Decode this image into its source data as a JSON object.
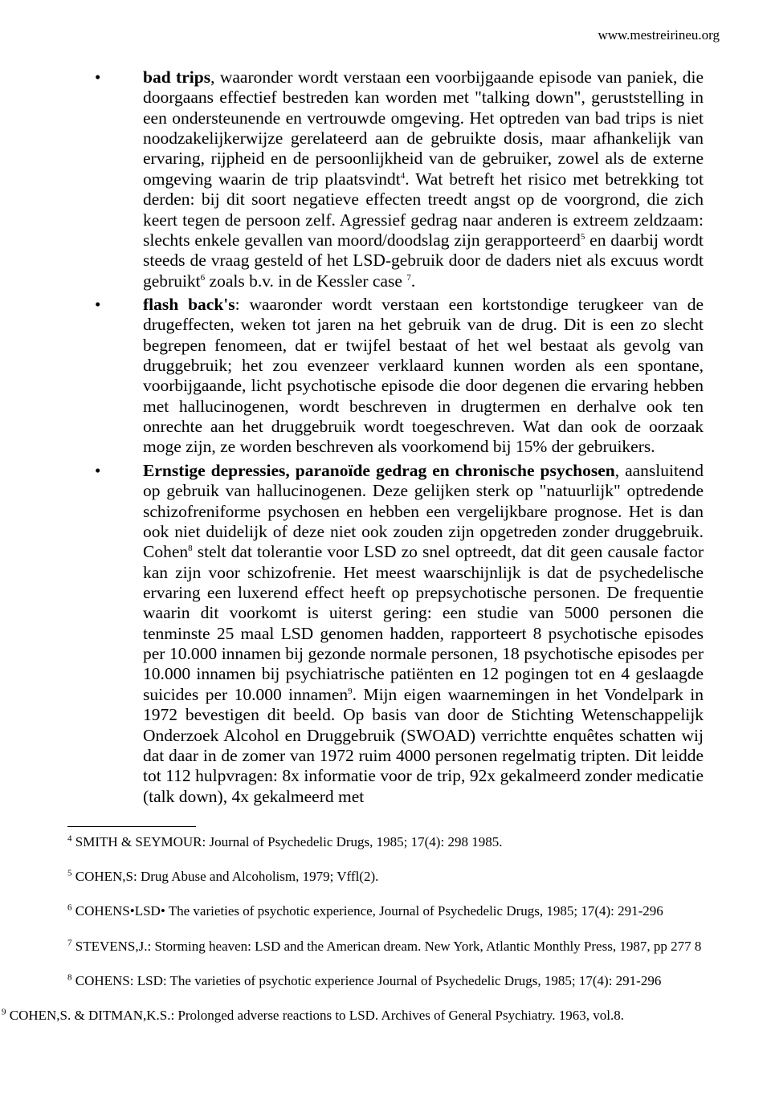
{
  "header": {
    "url": "www.mestreirineu.org"
  },
  "bullets": [
    {
      "lead_bold": "bad trips",
      "text_after_lead": ", waaronder wordt verstaan een voorbijgaande episode van paniek, die doorgaans effectief bestreden kan worden met \"talking down\", geruststelling in een ondersteunende en vertrouwde omgeving. Het optreden van bad trips is niet noodzakelijkerwijze gerelateerd aan de gebruikte dosis, maar afhankelijk van ervaring, rijpheid en de persoonlijkheid van de gebruiker, zowel als de externe omgeving waarin de trip plaatsvindt",
      "sup1": "4",
      "text_after_sup1": ". Wat betreft het risico met betrekking tot derden: bij dit soort negatieve effecten treedt angst op de voorgrond, die zich keert tegen de persoon zelf. Agressief gedrag naar anderen is extreem zeldzaam: slechts enkele gevallen van moord/doodslag zijn gerapporteerd",
      "sup2": "5",
      "text_after_sup2": " en daarbij wordt steeds de vraag gesteld of het LSD-gebruik door de daders niet als excuus wordt gebruikt",
      "sup3": "6",
      "text_after_sup3": " zoals b.v. in de Kessler case ",
      "sup4": "7",
      "tail": "."
    },
    {
      "lead_bold": "flash back's",
      "text_after_lead": ": waaronder wordt verstaan een kortstondige terugkeer van de drugeffecten, weken tot jaren na het gebruik van de drug. Dit is een zo slecht begrepen fenomeen, dat er twijfel bestaat of het wel bestaat als gevolg van druggebruik; het zou evenzeer verklaard kunnen worden als een spontane, voorbijgaande, licht psychotische episode die door degenen die ervaring hebben met hallucinogenen, wordt beschreven in drugtermen en derhalve ook ten onrechte aan het druggebruik wordt toegeschreven. Wat dan ook de oorzaak moge zijn, ze worden beschreven als voorkomend bij 15% der gebruikers."
    },
    {
      "lead_bold": "Ernstige depressies, paranoïde gedrag en chronische psychosen",
      "text_after_lead": ", aansluitend op gebruik van hallucinogenen. Deze gelijken sterk op \"natuurlijk\" optredende schizofreniforme psychosen en hebben een vergelijkbare prognose. Het is dan ook niet duidelijk of deze niet ook zouden zijn opgetreden zonder druggebruik. Cohen",
      "sup1": "8",
      "text_after_sup1": " stelt dat tolerantie voor LSD zo snel optreedt, dat dit geen causale factor kan zijn voor schizofrenie. Het meest waarschijnlijk is dat de psychedelische ervaring een luxerend effect heeft op prepsychotische personen. De frequentie waarin dit voorkomt is uiterst gering: een studie van 5000 personen die tenminste 25 maal LSD genomen hadden, rapporteert 8 psychotische episodes per 10.000 innamen bij gezonde normale personen, 18 psychotische episodes per 10.000 innamen bij psychiatrische patiënten en 12 pogingen tot en 4 geslaagde suicides per 10.000 innamen",
      "sup2": "9",
      "text_after_sup2": ". Mijn eigen waarnemingen in het Vondelpark in 1972 bevestigen dit beeld. Op basis van door de Stichting Wetenschappelijk Onderzoek Alcohol en Druggebruik (SWOAD) verrichtte enquêtes schatten wij dat daar in de zomer van 1972 ruim 4000 personen regelmatig tripten. Dit leidde tot 112 hulpvragen: 8x informatie voor de trip, 92x gekalmeerd zonder medicatie (talk down), 4x gekalmeerd met"
    }
  ],
  "footnotes": [
    {
      "num": "4",
      "text": " SMITH & SEYMOUR: Journal of Psychedelic Drugs, 1985; 17(4): 298 1985."
    },
    {
      "num": "5",
      "text": " COHEN,S: Drug Abuse and Alcoholism, 1979; Vffl(2)."
    },
    {
      "num": "6",
      "text": " COHENS•LSD• The varieties of psychotic experience, Journal of Psychedelic Drugs, 1985; 17(4): 291-296"
    },
    {
      "num": "7",
      "text": " STEVENS,J.: Storming heaven: LSD and the American dream. New York, Atlantic Monthly Press, 1987, pp 277 8"
    },
    {
      "num": "8",
      "text": " COHENS: LSD: The varieties of psychotic experience Journal of Psychedelic Drugs, 1985; 17(4): 291-296"
    },
    {
      "num": "9",
      "text": " COHEN,S. & DITMAN,K.S.: Prolonged adverse reactions to LSD. Archives of General Psychiatry. 1963, vol.8."
    }
  ]
}
